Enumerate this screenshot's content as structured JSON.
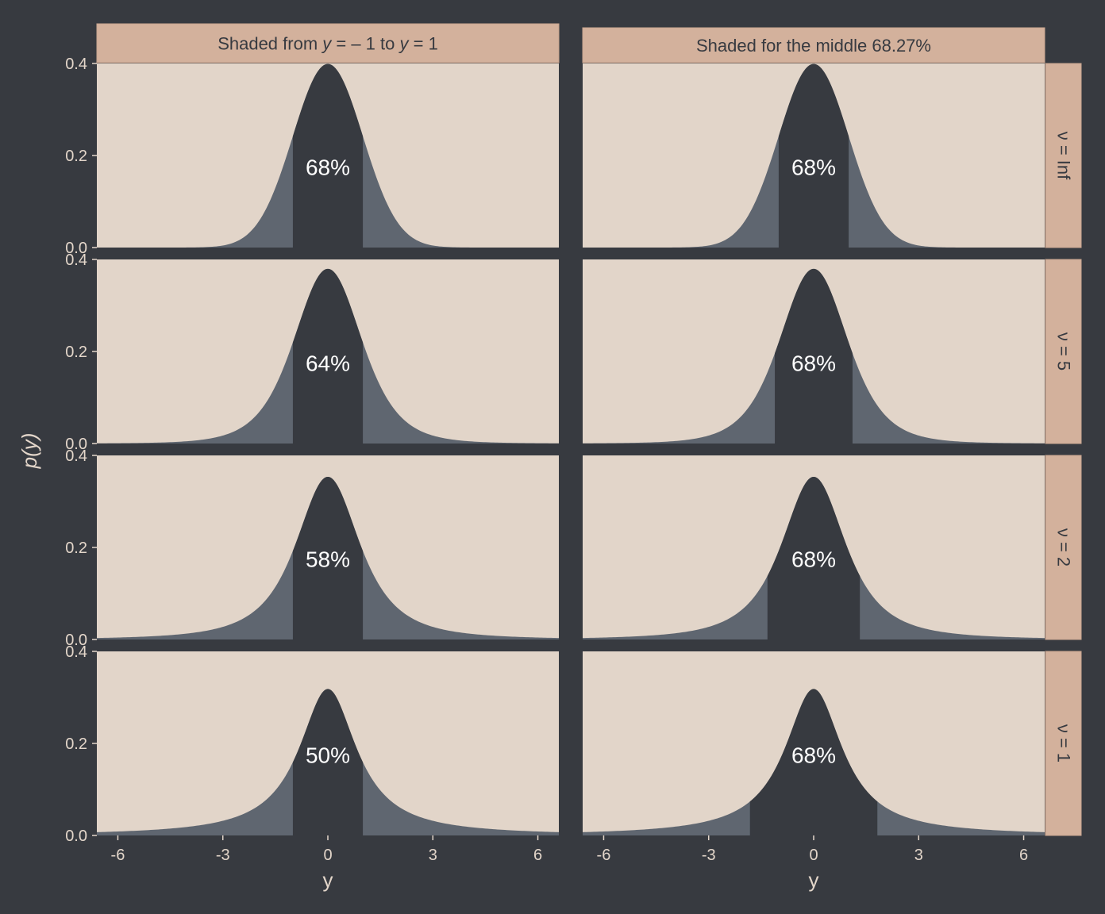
{
  "colors": {
    "background": "#373a40",
    "panel": "#e2d5c9",
    "strip": "#d3b19c",
    "strip_border": "#c9a590",
    "tail_fill": "#5f6670",
    "center_fill": "#373a40",
    "axis_text": "#e3d6ca",
    "label_text": "#ffffff"
  },
  "chart_data": {
    "type": "area",
    "xlabel": "y",
    "ylabel": "p(y)",
    "xlim": [
      -6.6,
      6.6
    ],
    "ylim": [
      0,
      0.4
    ],
    "x_ticks": [
      -6,
      -3,
      0,
      3,
      6
    ],
    "x_tick_labels": [
      "-6",
      "-3",
      "0",
      "3",
      "6"
    ],
    "y_ticks": [
      0,
      0.2,
      0.4
    ],
    "y_tick_labels": [
      "0.0",
      "0.2",
      "0.4"
    ],
    "col_strips": [
      {
        "parts": [
          {
            "text": "Shaded from ",
            "italic": false
          },
          {
            "text": "y",
            "italic": true
          },
          {
            "text": " = – 1 to ",
            "italic": false
          },
          {
            "text": "y",
            "italic": true
          },
          {
            "text": " = 1",
            "italic": false
          }
        ]
      },
      {
        "parts": [
          {
            "text": "Shaded for the middle 68.27%",
            "italic": false
          }
        ]
      }
    ],
    "row_strips": [
      "ν = Inf",
      "ν = 5",
      "ν = 2",
      "ν = 1"
    ],
    "nu": [
      "Inf",
      5,
      2,
      1
    ],
    "distribution": "student-t",
    "panels": [
      [
        {
          "shade_from": -1,
          "shade_to": 1,
          "label": "68%"
        },
        {
          "shade_from": -1,
          "shade_to": 1,
          "label": "68%"
        }
      ],
      [
        {
          "shade_from": -1,
          "shade_to": 1,
          "label": "64%"
        },
        {
          "shade_from": -1.11,
          "shade_to": 1.11,
          "label": "68%"
        }
      ],
      [
        {
          "shade_from": -1,
          "shade_to": 1,
          "label": "58%"
        },
        {
          "shade_from": -1.32,
          "shade_to": 1.32,
          "label": "68%"
        }
      ],
      [
        {
          "shade_from": -1,
          "shade_to": 1,
          "label": "50%"
        },
        {
          "shade_from": -1.82,
          "shade_to": 1.82,
          "label": "68%"
        }
      ]
    ]
  }
}
